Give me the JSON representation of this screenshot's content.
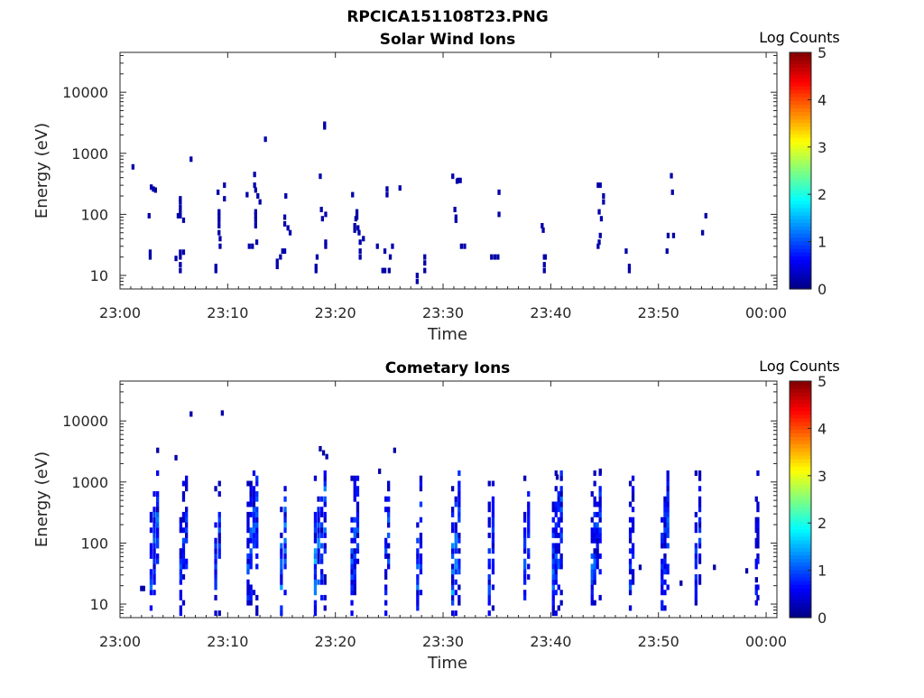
{
  "figure_title": "RPCICA151108T23.PNG",
  "chart_data": [
    {
      "type": "heatmap",
      "title": "Solar Wind Ions",
      "xlabel": "Time",
      "ylabel": "Energy (eV)",
      "xticks": [
        "23:00",
        "23:10",
        "23:20",
        "23:30",
        "23:40",
        "23:50",
        "00:00"
      ],
      "xlim_minutes": [
        0,
        61
      ],
      "yscale": "log",
      "yticks": [
        "10",
        "100",
        "1000",
        "10000"
      ],
      "ylim": [
        6,
        45000
      ],
      "colorbar": {
        "label": "Log Counts",
        "range": [
          0,
          5
        ],
        "ticks": [
          "0",
          "1",
          "2",
          "3",
          "4",
          "5"
        ],
        "colormap": "jet"
      },
      "grid": false,
      "cells": [
        [
          1.2,
          600,
          0.2
        ],
        [
          2.7,
          95,
          0.2
        ],
        [
          2.8,
          20,
          0.2
        ],
        [
          2.8,
          24,
          0.2
        ],
        [
          2.9,
          280,
          0.2
        ],
        [
          3.1,
          260,
          0.2
        ],
        [
          3.3,
          250,
          0.2
        ],
        [
          5.2,
          19,
          0.2
        ],
        [
          5.4,
          95,
          0.2
        ],
        [
          5.6,
          180,
          0.2
        ],
        [
          5.6,
          160,
          0.2
        ],
        [
          5.6,
          130,
          0.2
        ],
        [
          5.6,
          110,
          0.2
        ],
        [
          5.6,
          95,
          0.2
        ],
        [
          5.6,
          24,
          0.2
        ],
        [
          5.6,
          20,
          0.2
        ],
        [
          5.6,
          15,
          0.2
        ],
        [
          5.6,
          12,
          0.2
        ],
        [
          5.9,
          80,
          0.2
        ],
        [
          5.9,
          24,
          0.2
        ],
        [
          6.6,
          800,
          0.2
        ],
        [
          8.9,
          14,
          0.2
        ],
        [
          8.9,
          12,
          0.2
        ],
        [
          9.1,
          230,
          0.2
        ],
        [
          9.2,
          110,
          0.2
        ],
        [
          9.2,
          95,
          0.2
        ],
        [
          9.2,
          80,
          0.2
        ],
        [
          9.2,
          65,
          0.2
        ],
        [
          9.2,
          50,
          0.2
        ],
        [
          9.3,
          40,
          0.2
        ],
        [
          9.3,
          30,
          0.2
        ],
        [
          9.7,
          300,
          0.2
        ],
        [
          9.7,
          180,
          0.2
        ],
        [
          11.8,
          210,
          0.2
        ],
        [
          12.0,
          30,
          0.2
        ],
        [
          12.3,
          30,
          0.2
        ],
        [
          12.5,
          450,
          0.2
        ],
        [
          12.5,
          300,
          0.2
        ],
        [
          12.6,
          250,
          0.2
        ],
        [
          12.6,
          110,
          0.2
        ],
        [
          12.6,
          95,
          0.2
        ],
        [
          12.6,
          80,
          0.2
        ],
        [
          12.6,
          65,
          0.2
        ],
        [
          12.7,
          35,
          0.2
        ],
        [
          12.8,
          200,
          0.2
        ],
        [
          13.0,
          160,
          0.2
        ],
        [
          13.5,
          1700,
          0.2
        ],
        [
          14.6,
          14,
          0.2
        ],
        [
          14.6,
          17,
          0.2
        ],
        [
          14.9,
          20,
          0.2
        ],
        [
          15.1,
          25,
          0.2
        ],
        [
          15.3,
          25,
          0.2
        ],
        [
          15.3,
          90,
          0.2
        ],
        [
          15.3,
          70,
          0.2
        ],
        [
          15.4,
          200,
          0.2
        ],
        [
          15.6,
          60,
          0.2
        ],
        [
          15.8,
          50,
          0.2
        ],
        [
          18.2,
          14,
          0.2
        ],
        [
          18.2,
          12,
          0.2
        ],
        [
          18.3,
          20,
          0.2
        ],
        [
          18.6,
          420,
          0.2
        ],
        [
          18.7,
          120,
          0.2
        ],
        [
          18.8,
          85,
          0.2
        ],
        [
          19.0,
          3000,
          0.2
        ],
        [
          19.0,
          2700,
          0.2
        ],
        [
          19.1,
          35,
          0.2
        ],
        [
          19.1,
          30,
          0.2
        ],
        [
          19.1,
          100,
          0.2
        ],
        [
          21.6,
          210,
          0.2
        ],
        [
          21.8,
          65,
          0.2
        ],
        [
          21.8,
          55,
          0.2
        ],
        [
          21.9,
          85,
          0.2
        ],
        [
          22.0,
          110,
          0.2
        ],
        [
          22.0,
          90,
          0.2
        ],
        [
          22.1,
          60,
          0.2
        ],
        [
          22.2,
          50,
          0.2
        ],
        [
          22.3,
          25,
          0.2
        ],
        [
          22.3,
          20,
          0.2
        ],
        [
          22.3,
          35,
          0.2
        ],
        [
          22.6,
          40,
          0.2
        ],
        [
          23.9,
          30,
          0.2
        ],
        [
          24.4,
          12,
          0.2
        ],
        [
          24.6,
          25,
          0.2
        ],
        [
          24.6,
          12,
          0.2
        ],
        [
          24.8,
          260,
          0.2
        ],
        [
          24.8,
          210,
          0.2
        ],
        [
          25.0,
          12,
          0.2
        ],
        [
          25.1,
          20,
          0.2
        ],
        [
          25.3,
          30,
          0.2
        ],
        [
          26.0,
          270,
          0.2
        ],
        [
          27.6,
          8,
          0.2
        ],
        [
          27.6,
          10,
          0.2
        ],
        [
          28.3,
          12,
          0.2
        ],
        [
          28.3,
          16,
          0.2
        ],
        [
          28.3,
          20,
          0.2
        ],
        [
          30.9,
          420,
          0.2
        ],
        [
          31.1,
          120,
          0.2
        ],
        [
          31.2,
          90,
          0.2
        ],
        [
          31.2,
          80,
          0.2
        ],
        [
          31.3,
          350,
          0.2
        ],
        [
          31.4,
          360,
          0.2
        ],
        [
          31.6,
          360,
          0.2
        ],
        [
          31.7,
          30,
          0.2
        ],
        [
          32.0,
          30,
          0.2
        ],
        [
          34.5,
          20,
          0.2
        ],
        [
          34.8,
          20,
          0.2
        ],
        [
          35.1,
          20,
          0.2
        ],
        [
          35.2,
          230,
          0.2
        ],
        [
          35.2,
          100,
          0.2
        ],
        [
          39.2,
          65,
          0.2
        ],
        [
          39.3,
          55,
          0.2
        ],
        [
          39.4,
          20,
          0.2
        ],
        [
          39.4,
          15,
          0.2
        ],
        [
          39.4,
          12,
          0.2
        ],
        [
          39.5,
          20,
          0.2
        ],
        [
          44.4,
          300,
          0.2
        ],
        [
          44.6,
          300,
          0.2
        ],
        [
          44.9,
          200,
          0.2
        ],
        [
          44.9,
          160,
          0.2
        ],
        [
          44.5,
          110,
          0.2
        ],
        [
          44.7,
          85,
          0.2
        ],
        [
          44.6,
          45,
          0.2
        ],
        [
          44.5,
          35,
          0.2
        ],
        [
          44.4,
          30,
          0.2
        ],
        [
          47.0,
          25,
          0.2
        ],
        [
          47.3,
          14,
          0.2
        ],
        [
          47.3,
          12,
          0.2
        ],
        [
          50.8,
          25,
          0.2
        ],
        [
          50.9,
          45,
          0.2
        ],
        [
          51.2,
          430,
          0.2
        ],
        [
          51.3,
          230,
          0.2
        ],
        [
          51.4,
          45,
          0.2
        ],
        [
          54.1,
          50,
          0.2
        ],
        [
          54.4,
          95,
          0.2
        ]
      ]
    },
    {
      "type": "heatmap",
      "title": "Cometary Ions",
      "xlabel": "Time",
      "ylabel": "Energy (eV)",
      "xticks": [
        "23:00",
        "23:10",
        "23:20",
        "23:30",
        "23:40",
        "23:50",
        "00:00"
      ],
      "xlim_minutes": [
        0,
        61
      ],
      "yscale": "log",
      "yticks": [
        "10",
        "100",
        "1000",
        "10000"
      ],
      "ylim": [
        6,
        45000
      ],
      "colorbar": {
        "label": "Log Counts",
        "range": [
          0,
          5
        ],
        "ticks": [
          "0",
          "1",
          "2",
          "3",
          "4",
          "5"
        ],
        "colormap": "jet"
      },
      "grid": false,
      "bursts": [
        [
          3.2,
          0.9,
          1.0
        ],
        [
          5.9,
          0.8,
          0.8
        ],
        [
          9.1,
          0.7,
          0.8
        ],
        [
          12.3,
          1.1,
          1.0
        ],
        [
          15.2,
          0.7,
          1.1
        ],
        [
          18.6,
          1.2,
          1.3
        ],
        [
          21.8,
          0.8,
          0.9
        ],
        [
          24.8,
          0.5,
          1.0
        ],
        [
          27.8,
          0.6,
          0.9
        ],
        [
          31.2,
          0.9,
          1.3
        ],
        [
          34.5,
          0.7,
          0.7
        ],
        [
          37.8,
          0.7,
          0.8
        ],
        [
          40.6,
          1.0,
          1.0
        ],
        [
          44.2,
          1.0,
          0.9
        ],
        [
          47.5,
          0.5,
          0.7
        ],
        [
          50.6,
          0.8,
          0.9
        ],
        [
          53.7,
          0.7,
          0.8
        ],
        [
          59.1,
          0.3,
          0.4
        ]
      ],
      "cells": [
        [
          2.0,
          18,
          0.2
        ],
        [
          2.2,
          18,
          0.2
        ],
        [
          3.5,
          3300,
          0.2
        ],
        [
          5.2,
          2500,
          0.2
        ],
        [
          6.6,
          13000,
          0.2
        ],
        [
          9.5,
          13500,
          0.2
        ],
        [
          18.6,
          3500,
          0.2
        ],
        [
          18.9,
          3000,
          0.2
        ],
        [
          19.2,
          2600,
          0.2
        ],
        [
          25.5,
          3300,
          0.2
        ],
        [
          24.1,
          1500,
          0.2
        ],
        [
          40.6,
          1200,
          0.2
        ],
        [
          44.6,
          1500,
          0.2
        ],
        [
          48.3,
          40,
          0.2
        ],
        [
          52.1,
          22,
          0.2
        ],
        [
          55.2,
          40,
          0.2
        ],
        [
          58.2,
          35,
          0.2
        ],
        [
          59.1,
          25,
          0.2
        ]
      ]
    }
  ]
}
